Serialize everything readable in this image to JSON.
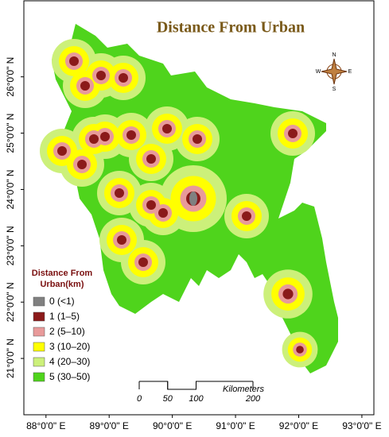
{
  "map": {
    "title": "Distance From Urban",
    "xlim": [
      87.65,
      93.19
    ],
    "ylim": [
      20.0,
      27.35
    ],
    "lon_ticks": [
      {
        "value": 88,
        "label": "88°0'0\" E"
      },
      {
        "value": 89,
        "label": "89°0'0\" E"
      },
      {
        "value": 90,
        "label": "90°0'0\" E"
      },
      {
        "value": 91,
        "label": "91°0'0\" E"
      },
      {
        "value": 92,
        "label": "92°0'0\" E"
      },
      {
        "value": 93,
        "label": "93°0'0\" E"
      }
    ],
    "lat_ticks": [
      {
        "value": 21,
        "label": "21°0'0\" N"
      },
      {
        "value": 22,
        "label": "22°0'0\" N"
      },
      {
        "value": 23,
        "label": "23°0'0\" N"
      },
      {
        "value": 24,
        "label": "24°0'0\" N"
      },
      {
        "value": 25,
        "label": "25°0'0\" N"
      },
      {
        "value": 26,
        "label": "26°0'0\" N"
      }
    ],
    "legend": {
      "title": [
        "Distance From",
        "Urban(km)"
      ],
      "items": [
        {
          "label": "0  (<1)",
          "color": "#808080"
        },
        {
          "label": "1  (1–5)",
          "color": "#8b1a1a"
        },
        {
          "label": "2  (5–10)",
          "color": "#e89a9a"
        },
        {
          "label": "3  (10–20)",
          "color": "#ffff00"
        },
        {
          "label": "4  (20–30)",
          "color": "#ccf07a"
        },
        {
          "label": "5  (30–50)",
          "color": "#4fd41c"
        }
      ]
    },
    "scale": {
      "unit": "Kilometers",
      "ticks": [
        0,
        50,
        100,
        200
      ]
    },
    "compass": {
      "n": "N",
      "s": "S",
      "w": "W",
      "e": "E"
    }
  }
}
